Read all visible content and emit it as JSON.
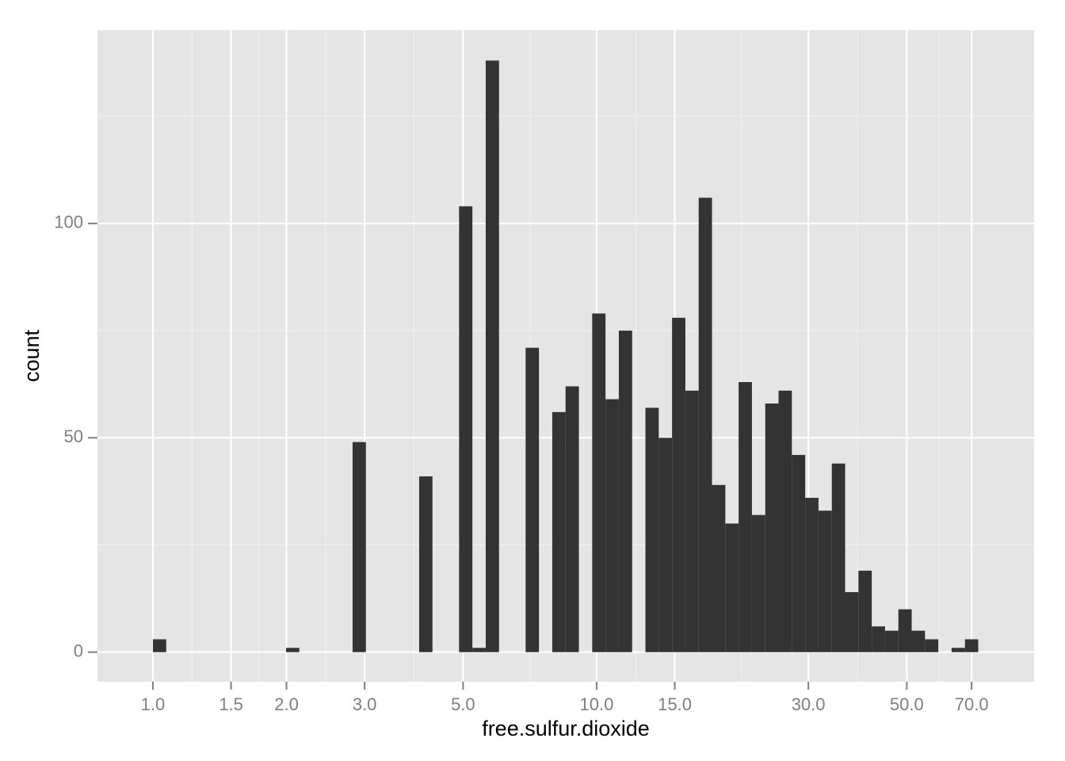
{
  "chart_data": {
    "type": "histogram",
    "x_label": "free.sulfur.dioxide",
    "y_label": "count",
    "xscale": "log",
    "grid": true,
    "color": "#333333",
    "panel_color": "#e5e5e5",
    "bins": [
      1,
      1.0715,
      1.1482,
      1.2303,
      1.3183,
      1.4125,
      1.5136,
      1.6218,
      1.7378,
      1.8621,
      1.9953,
      2.138,
      2.2909,
      2.4547,
      2.6303,
      2.8184,
      3.02,
      3.2359,
      3.4674,
      3.7154,
      3.9811,
      4.2658,
      4.5709,
      4.8978,
      5.2481,
      5.6234,
      6.0256,
      6.4565,
      6.9183,
      7.4131,
      7.9433,
      8.5114,
      9.1201,
      9.7724,
      10.4713,
      11.2202,
      12.0226,
      12.8825,
      13.8038,
      14.7911,
      15.8489,
      16.9824,
      18.197,
      19.4984,
      20.893,
      22.3872,
      23.9883,
      25.704,
      27.5423,
      29.5121,
      31.6228,
      33.8844,
      36.3078,
      38.9045,
      41.6869,
      44.6684,
      47.863,
      51.2861,
      54.9541,
      58.8844,
      63.0957,
      67.6083,
      72.4436
    ],
    "values": [
      3,
      0,
      0,
      0,
      0,
      0,
      0,
      0,
      0,
      0,
      1,
      0,
      0,
      0,
      0,
      49,
      0,
      0,
      0,
      0,
      41,
      0,
      0,
      104,
      1,
      138,
      0,
      0,
      71,
      0,
      56,
      62,
      0,
      79,
      59,
      75,
      0,
      57,
      50,
      78,
      61,
      106,
      39,
      30,
      63,
      32,
      58,
      61,
      46,
      36,
      33,
      44,
      14,
      19,
      6,
      5,
      10,
      5,
      3,
      0,
      1,
      3
    ],
    "xlim": [
      0.75,
      96.8
    ],
    "xticks": [
      {
        "value": 1,
        "label": "1.0"
      },
      {
        "value": 1.5,
        "label": "1.5"
      },
      {
        "value": 2,
        "label": "2.0"
      },
      {
        "value": 3,
        "label": "3.0"
      },
      {
        "value": 5,
        "label": "5.0"
      },
      {
        "value": 10,
        "label": "10.0"
      },
      {
        "value": 15,
        "label": "15.0"
      },
      {
        "value": 30,
        "label": "30.0"
      },
      {
        "value": 50,
        "label": "50.0"
      },
      {
        "value": 70,
        "label": "70.0"
      }
    ],
    "ylim": [
      -6.9,
      145.1
    ],
    "yticks": [
      0,
      50,
      100
    ]
  }
}
